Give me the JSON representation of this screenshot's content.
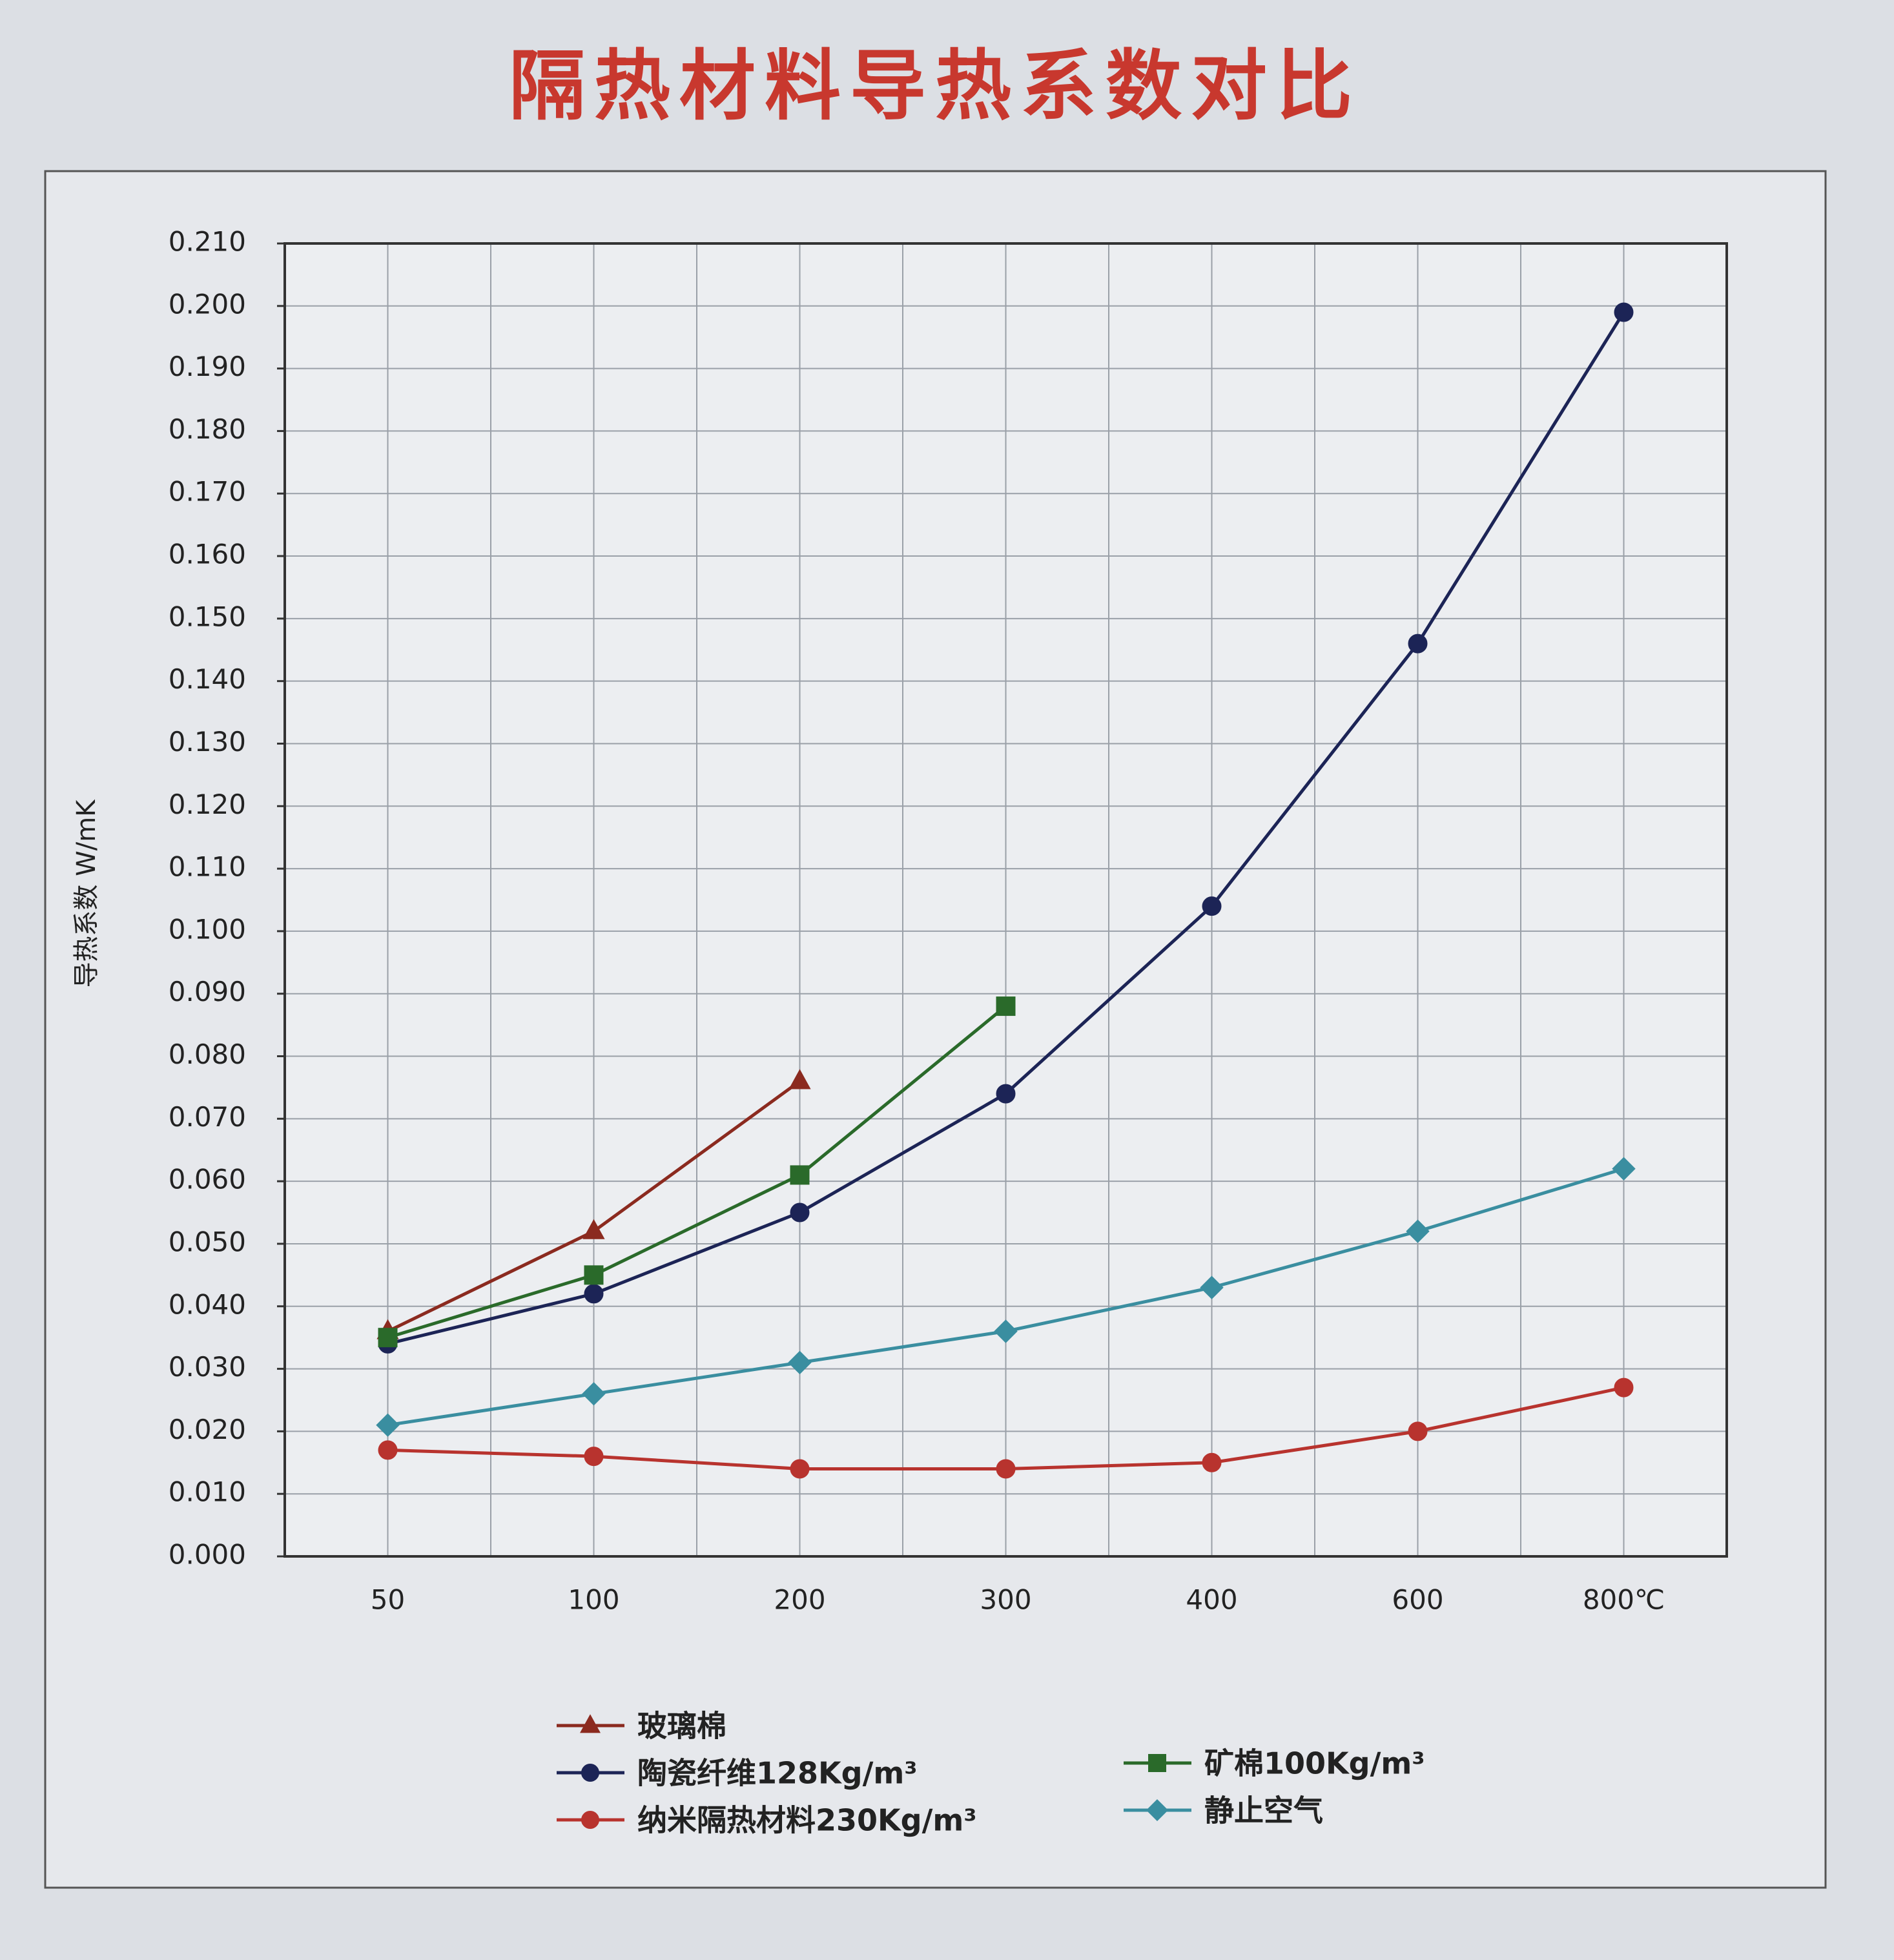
{
  "chart_data": {
    "type": "line",
    "title": "隔热材料导热系数对比",
    "y_label": "导热系数 W/mK",
    "categories": [
      "50",
      "100",
      "200",
      "300",
      "400",
      "600",
      "800℃"
    ],
    "series": [
      {
        "name": "玻璃棉",
        "color": "#8b2a1f",
        "marker": "triangle",
        "values": [
          0.036,
          0.052,
          0.076,
          null,
          null,
          null,
          null
        ]
      },
      {
        "name": "陶瓷纤维128Kg/m³",
        "color": "#1c2456",
        "marker": "circle",
        "values": [
          0.034,
          0.042,
          0.055,
          0.074,
          0.104,
          0.146,
          0.199
        ]
      },
      {
        "name": "纳米隔热材料230Kg/m³",
        "color": "#b8332e",
        "marker": "circle",
        "values": [
          0.017,
          0.016,
          0.014,
          0.014,
          0.015,
          0.02,
          0.027
        ]
      },
      {
        "name": "矿棉100Kg/m³",
        "color": "#2a6a2a",
        "marker": "square",
        "values": [
          0.035,
          0.045,
          0.061,
          0.088,
          null,
          null,
          null
        ]
      },
      {
        "name": "静止空气",
        "color": "#3a8ea0",
        "marker": "diamond",
        "values": [
          0.021,
          0.026,
          0.031,
          0.036,
          0.043,
          0.052,
          0.062
        ]
      }
    ],
    "ylim": [
      0,
      0.21
    ],
    "yticks": [
      {
        "value": 0,
        "label": "0.000"
      },
      {
        "value": 0.01,
        "label": "0.010"
      },
      {
        "value": 0.02,
        "label": "0.020"
      },
      {
        "value": 0.03,
        "label": "0.030"
      },
      {
        "value": 0.04,
        "label": "0.040"
      },
      {
        "value": 0.05,
        "label": "0.050"
      },
      {
        "value": 0.06,
        "label": "0.060"
      },
      {
        "value": 0.07,
        "label": "0.070"
      },
      {
        "value": 0.08,
        "label": "0.080"
      },
      {
        "value": 0.09,
        "label": "0.090"
      },
      {
        "value": 0.1,
        "label": "0.100"
      },
      {
        "value": 0.11,
        "label": "0.110"
      },
      {
        "value": 0.12,
        "label": "0.120"
      },
      {
        "value": 0.13,
        "label": "0.130"
      },
      {
        "value": 0.14,
        "label": "0.140"
      },
      {
        "value": 0.15,
        "label": "0.150"
      },
      {
        "value": 0.16,
        "label": "0.160"
      },
      {
        "value": 0.17,
        "label": "0.170"
      },
      {
        "value": 0.18,
        "label": "0.180"
      },
      {
        "value": 0.19,
        "label": "0.190"
      },
      {
        "value": 0.2,
        "label": "0.200"
      },
      {
        "value": 0.21,
        "label": "0.210"
      }
    ],
    "grid": true
  }
}
